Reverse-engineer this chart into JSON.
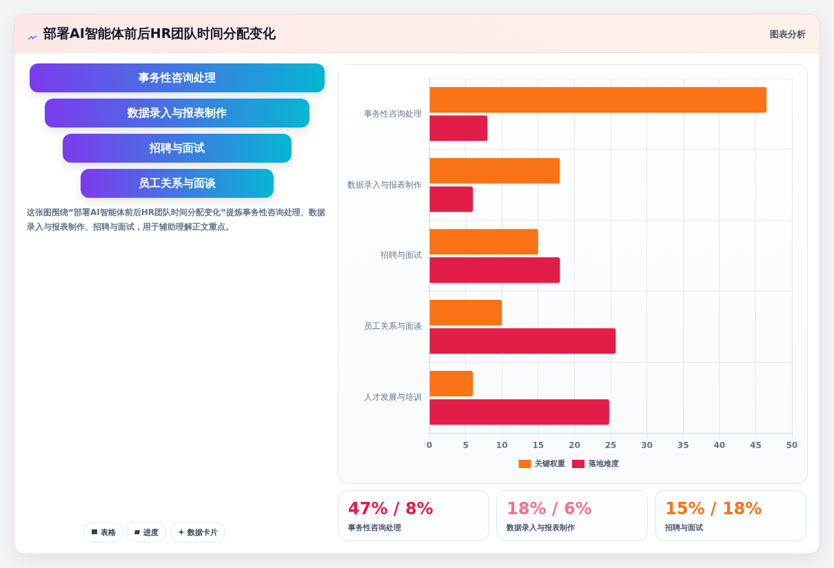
{
  "chart_data": {
    "type": "bar",
    "orientation": "horizontal",
    "title": "部署AI智能体前后HR团队时间分配变化",
    "categories": [
      "事务性咨询处理",
      "数据录入与报表制作",
      "招聘与面试",
      "员工关系与面谈",
      "人才发展与培训"
    ],
    "series": [
      {
        "name": "关键权重",
        "color": "#f97316",
        "values": [
          46.5,
          18,
          15,
          10,
          6
        ]
      },
      {
        "name": "落地难度",
        "color": "#e11d48",
        "values": [
          8,
          6,
          18,
          25.7,
          24.8
        ]
      }
    ],
    "xlim": [
      0,
      50
    ],
    "xticks": [
      0,
      5,
      10,
      15,
      20,
      25,
      30,
      35,
      40,
      45,
      50
    ],
    "grid": true,
    "legend": "bottom",
    "annotations": [
      "图表分析",
      "事务性咨询处理",
      "数据录入与报表制作",
      "招聘与面试",
      "员工关系与面谈",
      "这张图围绕“部署AI智能体前后HR团队时间分配变化”提炼事务性咨询处理、数据录入与报表制作、招聘与面试，用于辅助理解正文重点。",
      "表格",
      "进度",
      "数据卡片",
      "47% / 8%",
      "事务性咨询处理",
      "18% / 6%",
      "数据录入与报表制作",
      "15% / 18%",
      "招聘与面试"
    ]
  }
}
